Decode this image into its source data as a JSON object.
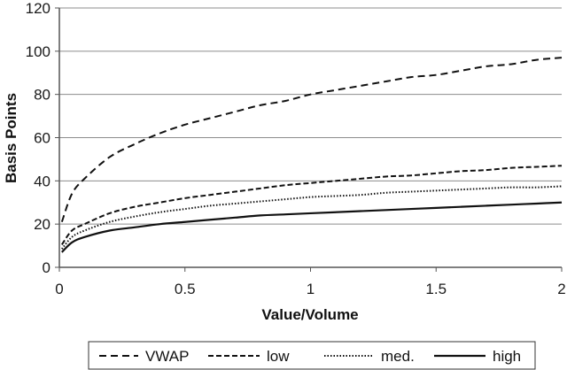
{
  "chart_data": {
    "type": "line",
    "xlabel": "Value/Volume",
    "ylabel": "Basis Points",
    "xlim": [
      0,
      2
    ],
    "ylim": [
      0,
      120
    ],
    "x_ticks": [
      0,
      0.5,
      1,
      1.5,
      2
    ],
    "x_tick_labels": [
      "0",
      "0.5",
      "1",
      "1.5",
      "2"
    ],
    "y_ticks": [
      0,
      20,
      40,
      60,
      80,
      100,
      120
    ],
    "y_tick_labels": [
      "0",
      "20",
      "40",
      "60",
      "80",
      "100",
      "120"
    ],
    "grid": "horizontal",
    "legend_position": "bottom",
    "x": [
      0.01,
      0.05,
      0.1,
      0.2,
      0.3,
      0.4,
      0.5,
      0.6,
      0.7,
      0.8,
      0.9,
      1.0,
      1.1,
      1.2,
      1.3,
      1.4,
      1.5,
      1.6,
      1.7,
      1.8,
      1.9,
      2.0
    ],
    "series": [
      {
        "name": "VWAP",
        "style": "dashed-long",
        "color": "#111111",
        "values": [
          21,
          34,
          41,
          51,
          57,
          62,
          66,
          69,
          72,
          75,
          77,
          80,
          82,
          84,
          86,
          88,
          89,
          91,
          93,
          94,
          96,
          97
        ]
      },
      {
        "name": "low",
        "style": "dashed-short",
        "color": "#111111",
        "values": [
          10.5,
          17,
          20,
          25,
          28,
          30,
          32,
          33.5,
          35,
          36.5,
          38,
          39,
          40,
          41,
          42,
          42.5,
          43.5,
          44.5,
          45,
          46,
          46.5,
          47
        ]
      },
      {
        "name": "med.",
        "style": "dotted",
        "color": "#111111",
        "values": [
          8.5,
          14,
          17,
          21,
          23.5,
          25.5,
          27,
          28.5,
          29.5,
          30.5,
          31.5,
          32.5,
          33,
          33.5,
          34.5,
          35,
          35.5,
          36,
          36.5,
          37,
          37,
          37.5
        ]
      },
      {
        "name": "high",
        "style": "solid",
        "color": "#111111",
        "values": [
          7,
          11.5,
          14,
          17,
          18.5,
          20,
          21,
          22,
          23,
          24,
          24.5,
          25,
          25.5,
          26,
          26.5,
          27,
          27.5,
          28,
          28.5,
          29,
          29.5,
          30
        ]
      }
    ]
  }
}
